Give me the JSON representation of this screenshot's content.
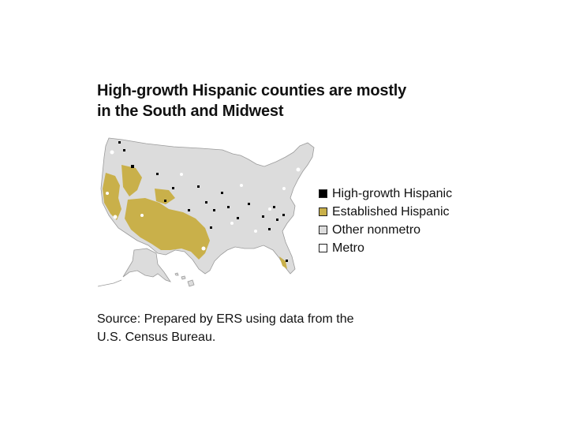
{
  "figure": {
    "title_line1": "High-growth Hispanic counties are mostly",
    "title_line2": "in the South and Midwest",
    "source_line1": "Source: Prepared by ERS using data from the",
    "source_line2": "U.S. Census Bureau."
  },
  "legend": {
    "items": [
      {
        "label": "High-growth Hispanic",
        "color": "#000000"
      },
      {
        "label": "Established Hispanic",
        "color": "#c9b04a"
      },
      {
        "label": "Other nonmetro",
        "color": "#dcdcdc"
      },
      {
        "label": "Metro",
        "color": "#ffffff"
      }
    ]
  }
}
